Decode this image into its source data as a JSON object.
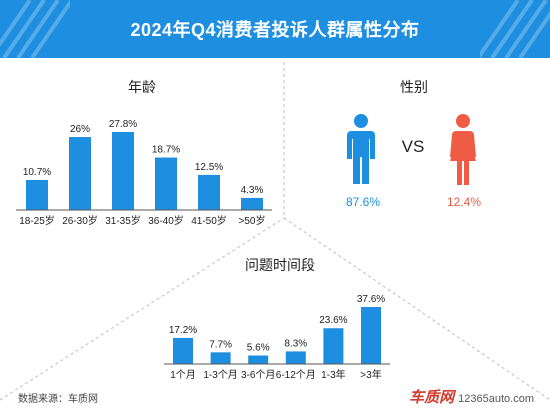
{
  "title": "2024年Q4消费者投诉人群属性分布",
  "colors": {
    "title_bg": "#1e8fe0",
    "bar": "#1e8fe0",
    "male": "#1e8fe0",
    "female": "#ef5b45",
    "divider": "#c8c8c8"
  },
  "chart_data": [
    {
      "type": "bar",
      "title": "年龄",
      "categories": [
        "18-25岁",
        "26-30岁",
        "31-35岁",
        "36-40岁",
        "41-50岁",
        ">50岁"
      ],
      "values": [
        10.7,
        26,
        27.8,
        18.7,
        12.5,
        4.3
      ],
      "value_labels": [
        "10.7%",
        "26%",
        "27.8%",
        "18.7%",
        "12.5%",
        "4.3%"
      ],
      "unit": "%"
    },
    {
      "type": "pie",
      "title": "性别",
      "categories": [
        "男",
        "女"
      ],
      "values": [
        87.6,
        12.4
      ],
      "value_labels": [
        "87.6%",
        "12.4%"
      ],
      "icons": [
        "male-icon",
        "female-icon"
      ],
      "separator": "VS"
    },
    {
      "type": "bar",
      "title": "问题时间段",
      "categories": [
        "1个月",
        "1-3个月",
        "3-6个月",
        "6-12个月",
        "1-3年",
        ">3年"
      ],
      "values": [
        17.2,
        7.7,
        5.6,
        8.3,
        23.6,
        37.6
      ],
      "value_labels": [
        "17.2%",
        "7.7%",
        "5.6%",
        "8.3%",
        "23.6%",
        "37.6%"
      ],
      "unit": "%"
    }
  ],
  "footer": {
    "source": "数据来源：车质网",
    "brand": "车质网",
    "url": "12365auto.com"
  }
}
